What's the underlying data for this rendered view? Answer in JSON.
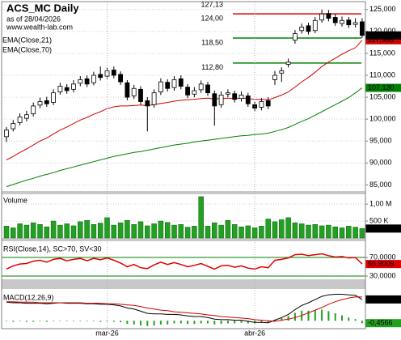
{
  "chart_data": [
    {
      "type": "candlestick",
      "title": "ACS_MC Daily",
      "subtitle": "as of 28/04/2026",
      "annotation": "www.wealth-lab.com",
      "categories": [
        null,
        null,
        null,
        null,
        null,
        null,
        null,
        null,
        null,
        null,
        null,
        null,
        null,
        null,
        null,
        "mar-26",
        null,
        null,
        null,
        null,
        null,
        null,
        null,
        null,
        null,
        null,
        null,
        null,
        null,
        null,
        null,
        null,
        null,
        null,
        null,
        null,
        null,
        "abr-26",
        null,
        null,
        null,
        null,
        null,
        null,
        null,
        null,
        null,
        null,
        null,
        null,
        null,
        null,
        null,
        null
      ],
      "open": [
        96,
        97.8,
        99.2,
        100.2,
        101.2,
        103.2,
        104.2,
        103.8,
        106.2,
        107.2,
        106.8,
        108.2,
        109.2,
        108.3,
        110.2,
        109.8,
        111.2,
        110.2,
        108.3,
        105.3,
        106.8,
        104.2,
        103.3,
        106.2,
        108.4,
        107.2,
        109.2,
        107.3,
        105.7,
        106.7,
        107.8,
        105.8,
        103.3,
        105.7,
        105.8,
        104.7,
        105.3,
        103.3,
        102.7,
        104.2,
        109,
        110.5,
        112.5,
        118,
        120.2,
        121.3,
        120.2,
        122.6,
        124.1,
        123.2,
        121.8,
        122.6,
        121.6,
        122.2
      ],
      "high": [
        98.2,
        99.8,
        101.3,
        101.9,
        103.8,
        104.9,
        105.1,
        106.8,
        108.3,
        108,
        108.9,
        109.8,
        110,
        110.8,
        112,
        111.8,
        112,
        110.9,
        108.9,
        107.8,
        107.5,
        105,
        106.8,
        109.3,
        109.1,
        109.8,
        110,
        108,
        107.3,
        108.8,
        108.5,
        106.5,
        106.3,
        106.8,
        106.5,
        106.3,
        106,
        104,
        104.8,
        105,
        111,
        111.8,
        113.8,
        120.3,
        121.8,
        122,
        123.3,
        125,
        124.9,
        124,
        123.4,
        123.3,
        123,
        123
      ],
      "low": [
        94.8,
        97.2,
        98.6,
        99.5,
        100.6,
        102.5,
        102.8,
        103.2,
        105.6,
        105.8,
        106.1,
        107.5,
        107.3,
        107.7,
        108.8,
        109.2,
        109.3,
        107.8,
        104.3,
        104.6,
        103.3,
        97.2,
        102.6,
        105.5,
        106.3,
        106.5,
        106.8,
        104.8,
        105,
        106,
        105.3,
        98.5,
        102.6,
        105,
        103.8,
        104,
        102.8,
        101.8,
        102,
        102.3,
        107.8,
        108.5,
        111.8,
        117.2,
        119.5,
        119.3,
        119.6,
        122,
        122.3,
        121.3,
        121.1,
        120.8,
        120.9,
        118.5
      ],
      "close": [
        97.5,
        99,
        100.5,
        101,
        103,
        104,
        103.5,
        106,
        107.5,
        106.5,
        108,
        109,
        108,
        110,
        109.5,
        111,
        110,
        108.5,
        105,
        107,
        104,
        103,
        106,
        108.5,
        107,
        109,
        107.5,
        105.5,
        106.5,
        108,
        106,
        103,
        105.5,
        106,
        104.5,
        105.5,
        103.5,
        102.5,
        104,
        103,
        110,
        111,
        113,
        119.5,
        121,
        120,
        122.5,
        124,
        123,
        122,
        122.5,
        121.5,
        122,
        119.1
      ],
      "close_label": "119,100",
      "series": [
        {
          "name": "EMA(Close,21)",
          "color": "#d00000",
          "last_label": "117,988",
          "values": [
            90.7,
            91.5,
            92.4,
            93.2,
            94.1,
            95,
            95.7,
            96.6,
            97.5,
            98.2,
            99,
            99.8,
            100.4,
            101.1,
            101.7,
            102.4,
            102.8,
            103,
            103,
            103.1,
            103.2,
            103.1,
            103.3,
            103.6,
            103.8,
            104.1,
            104.3,
            104.4,
            104.5,
            104.7,
            104.8,
            104.6,
            104.7,
            104.8,
            104.7,
            104.8,
            104.7,
            104.5,
            104.5,
            104.4,
            104.9,
            105.5,
            106.2,
            107.3,
            108.5,
            109.5,
            110.7,
            112,
            113,
            113.9,
            114.8,
            115.6,
            116.3,
            117.988
          ]
        },
        {
          "name": "EMA(Close,70)",
          "color": "#008000",
          "last_label": "107,130",
          "values": [
            84.6,
            85.1,
            85.6,
            86.1,
            86.5,
            87,
            87.4,
            87.8,
            88.3,
            88.7,
            89.1,
            89.5,
            89.9,
            90.3,
            90.7,
            91.1,
            91.5,
            91.8,
            92.1,
            92.4,
            92.6,
            92.9,
            93.2,
            93.5,
            93.8,
            94.1,
            94.3,
            94.5,
            94.8,
            95,
            95.2,
            95.4,
            95.6,
            95.8,
            96,
            96.2,
            96.3,
            96.5,
            96.6,
            96.8,
            97.2,
            97.6,
            98.1,
            98.8,
            99.5,
            100.1,
            100.9,
            101.7,
            102.5,
            103.3,
            104.1,
            104.9,
            106,
            107.13
          ]
        }
      ],
      "levels": [
        {
          "value": 127.13,
          "label": "127,13",
          "color": "#e00000"
        },
        {
          "value": 124,
          "label": "124,00",
          "color": "#e00000"
        },
        {
          "value": 118.5,
          "label": "118,50",
          "color": "#008000"
        },
        {
          "value": 112.8,
          "label": "112,80",
          "color": "#008000"
        }
      ],
      "ylim": [
        83.6,
        126.8
      ],
      "yticks": [
        {
          "value": 125,
          "label": "125,000"
        },
        {
          "value": 120,
          "label": "120,000"
        },
        {
          "value": 115,
          "label": "115,000"
        },
        {
          "value": 110,
          "label": "110,000"
        },
        {
          "value": 105,
          "label": "105,000"
        },
        {
          "value": 100,
          "label": "100,000"
        },
        {
          "value": 95,
          "label": "95,000"
        },
        {
          "value": 90,
          "label": "90,000"
        },
        {
          "value": 85,
          "label": "85,000"
        }
      ],
      "grid": true
    },
    {
      "type": "bar",
      "title": "Volume",
      "color": "#22a022",
      "last_label": "278,544",
      "values": [
        350000,
        300000,
        420000,
        380000,
        450000,
        400000,
        330000,
        500000,
        380000,
        420000,
        360000,
        480000,
        520000,
        400000,
        440000,
        600000,
        380000,
        450000,
        520000,
        400000,
        480000,
        360000,
        420000,
        500000,
        460000,
        380000,
        400000,
        320000,
        350000,
        1220000,
        350000,
        450000,
        380000,
        520000,
        400000,
        330000,
        360000,
        300000,
        350000,
        560000,
        480000,
        540000,
        600000,
        450000,
        420000,
        380000,
        400000,
        360000,
        380000,
        330000,
        300000,
        350000,
        320000,
        278544
      ],
      "ylim": [
        0,
        1290000
      ],
      "yticks": [
        {
          "value": 1000000,
          "label": "1,00 M"
        },
        {
          "value": 500000,
          "label": "500 K"
        }
      ]
    },
    {
      "type": "line",
      "title": "RSI(Close,14), SC>70, SV<30",
      "color": "#e00000",
      "last_label": "55,9009",
      "values": [
        45,
        52,
        56,
        57,
        62,
        64,
        60,
        66,
        68,
        63,
        66,
        68,
        63,
        68,
        65,
        69,
        64,
        58,
        50,
        55,
        48,
        46,
        54,
        60,
        55,
        59,
        55,
        50,
        53,
        57,
        51,
        45,
        52,
        53,
        49,
        52,
        47,
        45,
        50,
        48,
        64,
        66,
        69,
        76,
        77,
        74,
        76,
        78,
        74,
        71,
        72,
        69,
        70,
        55.9009
      ],
      "ylim": [
        23,
        105
      ],
      "yticks": [
        {
          "value": 70,
          "label": "70,0000"
        },
        {
          "value": 30,
          "label": "30,0000"
        }
      ],
      "tick_color": "#008000"
    },
    {
      "type": "macd",
      "title": "MACD(12,26,9)",
      "series": [
        {
          "color": "#000000",
          "last_label": "4,0244",
          "values": [
            3.5,
            3.4,
            3.4,
            3.3,
            3.3,
            3.3,
            3.2,
            3.3,
            3.4,
            3.3,
            3.3,
            3.3,
            3.2,
            3.2,
            3.1,
            3.1,
            3.0,
            2.8,
            2.4,
            2.2,
            1.8,
            1.4,
            1.3,
            1.3,
            1.2,
            1.2,
            1.1,
            0.9,
            0.8,
            0.8,
            0.6,
            0.3,
            0.2,
            0.2,
            0.1,
            0.1,
            -0.1,
            -0.3,
            -0.3,
            -0.4,
            0.1,
            0.6,
            1.2,
            2.1,
            2.9,
            3.4,
            4.0,
            4.6,
            4.9,
            5.0,
            5.0,
            4.9,
            4.8,
            4.0244
          ]
        },
        {
          "color": "#d00000",
          "values": [
            3.6,
            3.6,
            3.5,
            3.5,
            3.5,
            3.4,
            3.4,
            3.4,
            3.4,
            3.4,
            3.4,
            3.4,
            3.3,
            3.3,
            3.3,
            3.2,
            3.2,
            3.1,
            3.0,
            2.9,
            2.7,
            2.4,
            2.2,
            2.0,
            1.9,
            1.7,
            1.6,
            1.5,
            1.4,
            1.3,
            1.1,
            1.0,
            0.8,
            0.7,
            0.6,
            0.5,
            0.4,
            0.2,
            0.1,
            0.0,
            -0.1,
            0.1,
            0.3,
            0.6,
            1.0,
            1.5,
            2.0,
            2.5,
            3.1,
            3.6,
            4.0,
            4.3,
            4.5,
            4.481
          ]
        }
      ],
      "histogram": {
        "color": "#22a022",
        "last_label": "-0,4566",
        "values": [
          -0.1,
          -0.2,
          -0.1,
          -0.2,
          -0.2,
          -0.1,
          -0.2,
          -0.1,
          0,
          -0.1,
          -0.1,
          -0.1,
          -0.1,
          -0.1,
          -0.2,
          -0.1,
          -0.2,
          -0.3,
          -0.6,
          -0.7,
          -0.9,
          -1.0,
          -0.9,
          -0.7,
          -0.7,
          -0.5,
          -0.5,
          -0.6,
          -0.6,
          -0.5,
          -0.5,
          -0.7,
          -0.6,
          -0.5,
          -0.5,
          -0.4,
          -0.5,
          -0.5,
          -0.4,
          -0.4,
          0.2,
          0.5,
          0.9,
          1.5,
          1.9,
          1.9,
          2.0,
          2.1,
          1.8,
          1.4,
          1.0,
          0.6,
          0.3,
          -0.4566
        ]
      },
      "ylim": [
        -1.5,
        6
      ]
    }
  ]
}
